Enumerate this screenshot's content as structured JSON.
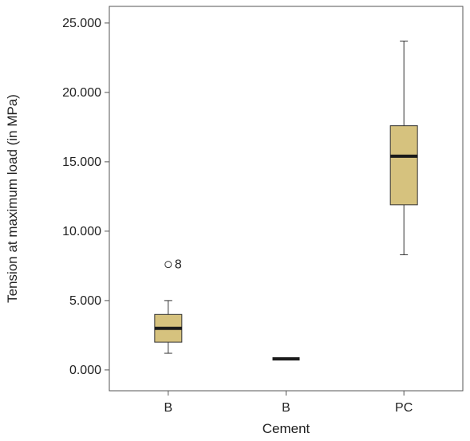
{
  "chart_data": {
    "type": "boxplot",
    "title": "",
    "xlabel": "Cement",
    "ylabel": "Tension at maximum load (in MPa)",
    "ylim": [
      -1.5,
      26.2
    ],
    "yticks": [
      0,
      5,
      10,
      15,
      20,
      25
    ],
    "ytick_labels": [
      "0.000",
      "5.000",
      "10.000",
      "15.000",
      "20.000",
      "25.000"
    ],
    "grid": false,
    "legend": "none",
    "box_color": "#d6c27e",
    "median_color": "#1a1a1a",
    "categories": [
      "B",
      "B",
      "PC"
    ],
    "boxes": [
      {
        "category": "B",
        "min": 1.2,
        "q1": 2.0,
        "median": 3.0,
        "q3": 4.0,
        "max": 5.0,
        "outliers": [
          {
            "value": 7.6,
            "label": "8"
          }
        ]
      },
      {
        "category": "B",
        "min": 0.8,
        "q1": 0.8,
        "median": 0.8,
        "q3": 0.8,
        "max": 0.8,
        "outliers": []
      },
      {
        "category": "PC",
        "min": 8.3,
        "q1": 11.9,
        "median": 15.4,
        "q3": 17.6,
        "max": 23.7,
        "outliers": []
      }
    ]
  }
}
